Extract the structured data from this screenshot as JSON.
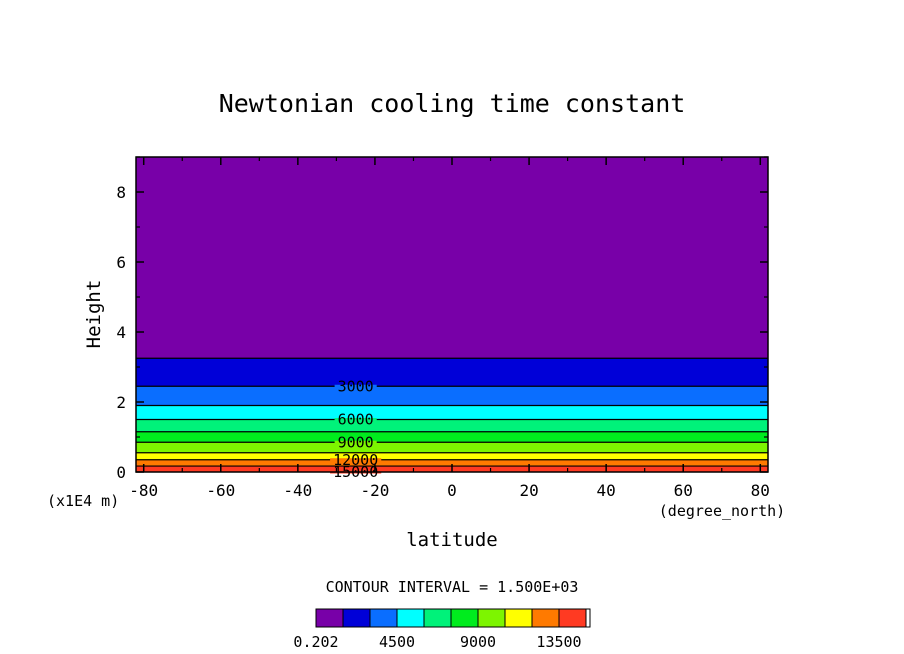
{
  "chart_data": {
    "type": "contour",
    "title": "Newtonian cooling time constant",
    "xlabel": "latitude",
    "x_units": "(degree_north)",
    "ylabel": "Height",
    "y_units": "(x1E4 m)",
    "xlim": [
      -82,
      82
    ],
    "ylim": [
      0,
      9
    ],
    "xticks": [
      -80,
      -60,
      -40,
      -20,
      0,
      20,
      40,
      60,
      80
    ],
    "xtick_labels": [
      "-80",
      "-60",
      "-40",
      "-20",
      "0",
      "20",
      "40",
      "60",
      "80"
    ],
    "yticks": [
      0,
      2,
      4,
      6,
      8
    ],
    "ytick_labels": [
      "0",
      "2",
      "4",
      "6",
      "8"
    ],
    "contour_interval_text": "CONTOUR INTERVAL = 1.500E+03",
    "bands": [
      {
        "ylow": 0.0,
        "yhigh": 0.17,
        "color": "#ff3a22"
      },
      {
        "ylow": 0.17,
        "yhigh": 0.35,
        "color": "#ff7a00"
      },
      {
        "ylow": 0.35,
        "yhigh": 0.55,
        "color": "#ffff00"
      },
      {
        "ylow": 0.55,
        "yhigh": 0.85,
        "color": "#7df500"
      },
      {
        "ylow": 0.85,
        "yhigh": 1.15,
        "color": "#00ec1e"
      },
      {
        "ylow": 1.15,
        "yhigh": 1.5,
        "color": "#00f27a"
      },
      {
        "ylow": 1.5,
        "yhigh": 1.9,
        "color": "#00ffff"
      },
      {
        "ylow": 1.9,
        "yhigh": 2.45,
        "color": "#0a6eff"
      },
      {
        "ylow": 2.45,
        "yhigh": 3.25,
        "color": "#0000d8"
      },
      {
        "ylow": 3.25,
        "yhigh": 9.0,
        "color": "#7800a8"
      }
    ],
    "contour_lines": [
      0.17,
      0.35,
      0.55,
      0.85,
      1.15,
      1.5,
      1.9,
      2.45,
      3.25
    ],
    "contour_labels": [
      {
        "text": "3000",
        "y": 2.45
      },
      {
        "text": "6000",
        "y": 1.5
      },
      {
        "text": "9000",
        "y": 0.85
      },
      {
        "text": "12000",
        "y": 0.35
      },
      {
        "text": "15000",
        "y": 0.0
      }
    ],
    "colorbar": {
      "colors": [
        "#7800a8",
        "#0000d8",
        "#0a6eff",
        "#00ffff",
        "#00f27a",
        "#00ec1e",
        "#7df500",
        "#ffff00",
        "#ff7a00",
        "#ff3a22"
      ],
      "tick_labels": [
        "0.202",
        "4500",
        "9000",
        "13500"
      ]
    }
  }
}
